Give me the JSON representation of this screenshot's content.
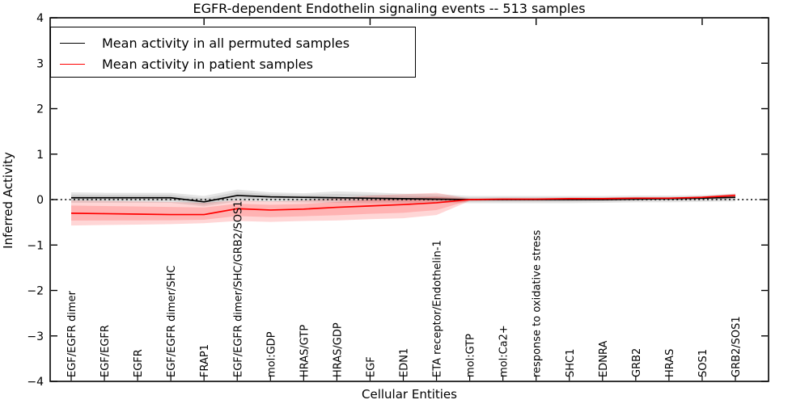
{
  "chart_data": {
    "type": "line",
    "title": "EGFR-dependent Endothelin signaling events -- 513 samples",
    "xlabel": "Cellular Entities",
    "ylabel": "Inferred Activity",
    "ylim": [
      -4,
      4
    ],
    "y_ticks": [
      4,
      3,
      2,
      1,
      0,
      -1,
      -2,
      -3,
      -4
    ],
    "grid": false,
    "zero_line": {
      "y": 0,
      "style": "dotted",
      "color": "#000000"
    },
    "legend_position": "upper left",
    "top_tick_indices": [
      4,
      9,
      14,
      19
    ],
    "categories": [
      "EGF/EGFR dimer",
      "EGF/EGFR",
      "EGFR",
      "EGF/EGFR dimer/SHC",
      "FRAP1",
      "EGF/EGFR dimer/SHC/GRB2/SOS1",
      "mol:GDP",
      "HRAS/GTP",
      "HRAS/GDP",
      "EGF",
      "EDN1",
      "ETA receptor/Endothelin-1",
      "mol:GTP",
      "mol:Ca2+",
      "response to oxidative stress",
      "SHC1",
      "EDNRA",
      "GRB2",
      "HRAS",
      "SOS1",
      "GRB2/SOS1"
    ],
    "series": [
      {
        "name": "Mean activity in all permuted samples",
        "color": "#000000",
        "band_color": "#8c8c8c",
        "mean": [
          0.04,
          0.04,
          0.04,
          0.04,
          -0.05,
          0.09,
          0.06,
          0.05,
          0.04,
          0.03,
          0.02,
          0.01,
          0.0,
          0.0,
          0.0,
          0.0,
          0.0,
          0.01,
          0.02,
          0.03,
          0.05
        ],
        "band_upper": [
          0.16,
          0.15,
          0.15,
          0.15,
          0.08,
          0.22,
          0.16,
          0.14,
          0.18,
          0.16,
          0.13,
          0.12,
          0.08,
          0.08,
          0.08,
          0.08,
          0.08,
          0.09,
          0.09,
          0.1,
          0.13
        ],
        "band_lower": [
          -0.07,
          -0.07,
          -0.07,
          -0.07,
          -0.15,
          -0.04,
          -0.05,
          -0.06,
          -0.07,
          -0.08,
          -0.08,
          -0.07,
          -0.08,
          -0.08,
          -0.08,
          -0.08,
          -0.07,
          -0.06,
          -0.06,
          -0.05,
          -0.04
        ]
      },
      {
        "name": "Mean activity in patient samples",
        "color": "#ff0000",
        "band_color": "#ff0000",
        "mean": [
          -0.3,
          -0.31,
          -0.32,
          -0.33,
          -0.33,
          -0.2,
          -0.23,
          -0.21,
          -0.17,
          -0.14,
          -0.11,
          -0.07,
          0.0,
          0.01,
          0.01,
          0.02,
          0.02,
          0.03,
          0.03,
          0.05,
          0.09
        ],
        "band_upper": [
          -0.02,
          -0.03,
          -0.04,
          -0.05,
          -0.07,
          -0.02,
          -0.04,
          -0.02,
          0.03,
          0.09,
          0.12,
          0.15,
          0.02,
          0.03,
          0.03,
          0.04,
          0.04,
          0.05,
          0.05,
          0.07,
          0.13
        ],
        "band_lower": [
          -0.57,
          -0.56,
          -0.55,
          -0.54,
          -0.52,
          -0.47,
          -0.49,
          -0.47,
          -0.46,
          -0.43,
          -0.41,
          -0.34,
          -0.03,
          -0.01,
          -0.01,
          0.0,
          0.0,
          0.01,
          0.01,
          0.02,
          0.05
        ]
      }
    ]
  }
}
